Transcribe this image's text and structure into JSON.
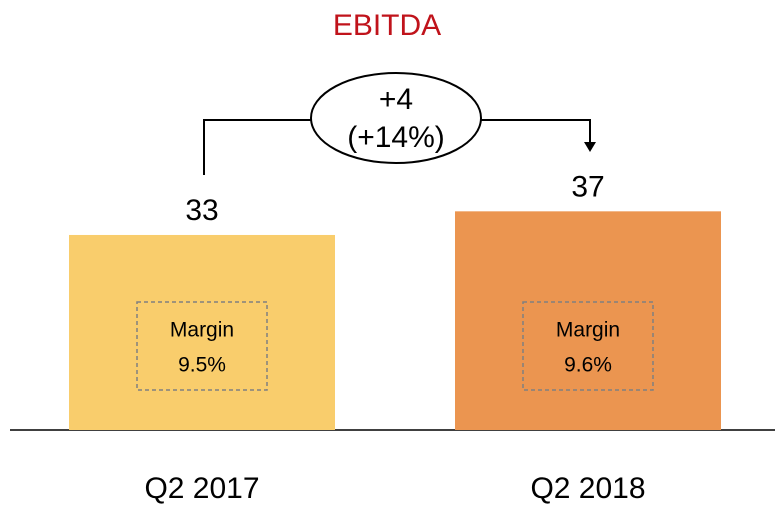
{
  "chart_data": {
    "type": "bar",
    "title": "EBITDA",
    "categories": [
      "Q2 2017",
      "Q2 2018"
    ],
    "series": [
      {
        "name": null,
        "values": [
          33,
          37
        ],
        "colors": [
          "#f9cd6c",
          "#eb9550"
        ]
      }
    ],
    "annotation": {
      "delta": "+4",
      "percent": "(+14%)"
    },
    "margins": {
      "label": "Margin",
      "values": [
        9.5,
        9.6
      ],
      "value_labels": [
        "9.5%",
        "9.6%"
      ]
    }
  }
}
